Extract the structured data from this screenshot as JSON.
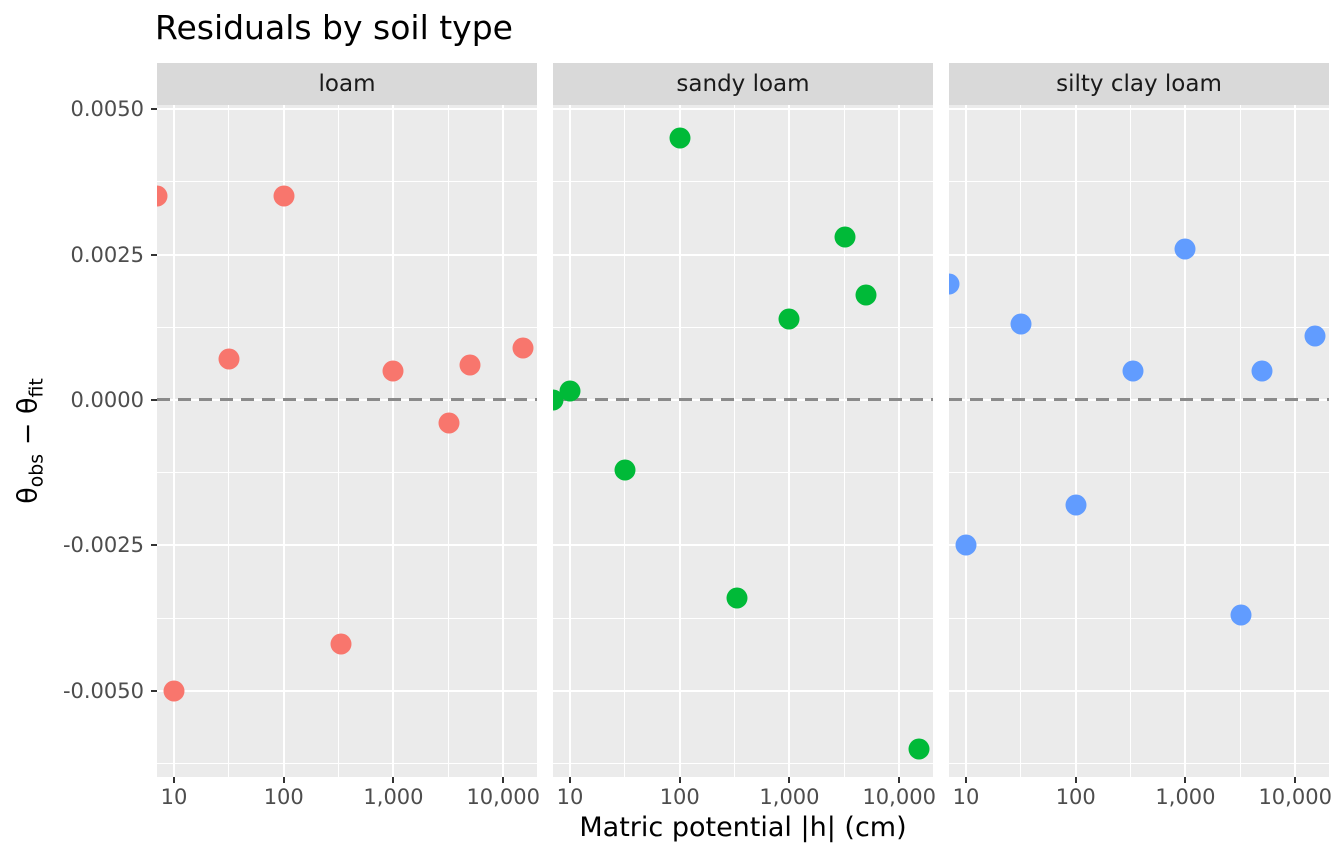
{
  "title": "Residuals by soil type",
  "x_axis_title": "Matric potential |h| (cm)",
  "y_label_parts": {
    "theta1": "θ",
    "sub1": "obs",
    "minus": " − ",
    "theta2": "θ",
    "sub2": "fit"
  },
  "colors": {
    "panel_background": "#ebebeb",
    "strip_background": "#d9d9d9",
    "gridline": "#ffffff",
    "zero_line": "#8a8a8a",
    "tick_mark": "#333333",
    "tick_text": "#4d4d4d",
    "loam_point": "#F8766D",
    "sandy_loam_point": "#00BA38",
    "silty_clay_loam_point": "#619CFF"
  },
  "chart_data": {
    "type": "scatter",
    "title": "Residuals by soil type",
    "xlabel": "Matric potential |h| (cm)",
    "ylabel": "theta_obs - theta_fit",
    "x_scale": "log10",
    "x_log_domain": [
      0.845,
      4.308
    ],
    "y_domain": [
      -0.00648,
      0.00507
    ],
    "x_ticks": {
      "values": [
        10,
        100,
        1000,
        10000
      ],
      "labels": [
        "10",
        "100",
        "1,000",
        "10,000"
      ]
    },
    "x_minor_log": [
      1.5,
      2.5,
      3.5
    ],
    "y_ticks": {
      "values": [
        0.005,
        0.0025,
        0,
        -0.0025,
        -0.005
      ],
      "labels": [
        "0.0050",
        "0.0025",
        "0.0000",
        "-0.0025",
        "-0.0050"
      ]
    },
    "y_minor": [
      0.00375,
      0.00125,
      -0.00125,
      -0.00375,
      -0.00625
    ],
    "zero_reference_line": 0,
    "grid": true,
    "legend_position": "none",
    "facets": [
      {
        "label": "loam",
        "color": "#F8766D",
        "points": [
          [
            7,
            0.0035
          ],
          [
            10,
            -0.005
          ],
          [
            32,
            0.0007
          ],
          [
            100,
            0.0035
          ],
          [
            330,
            -0.0042
          ],
          [
            1000,
            0.0005
          ],
          [
            3200,
            -0.0004
          ],
          [
            5000,
            0.0006
          ],
          [
            15000,
            0.0009
          ]
        ]
      },
      {
        "label": "sandy loam",
        "color": "#00BA38",
        "points": [
          [
            7,
            0.0
          ],
          [
            10,
            0.00015
          ],
          [
            32,
            -0.0012
          ],
          [
            100,
            0.0045
          ],
          [
            330,
            -0.0034
          ],
          [
            1000,
            0.0014
          ],
          [
            3200,
            0.0028
          ],
          [
            5000,
            0.0018
          ],
          [
            15000,
            -0.006
          ]
        ]
      },
      {
        "label": "silty clay loam",
        "color": "#619CFF",
        "points": [
          [
            7,
            0.002
          ],
          [
            10,
            -0.0025
          ],
          [
            32,
            0.0013
          ],
          [
            100,
            -0.0018
          ],
          [
            330,
            0.0005
          ],
          [
            1000,
            0.0026
          ],
          [
            3200,
            -0.0037
          ],
          [
            5000,
            0.0005
          ],
          [
            15000,
            0.0011
          ]
        ]
      }
    ]
  }
}
